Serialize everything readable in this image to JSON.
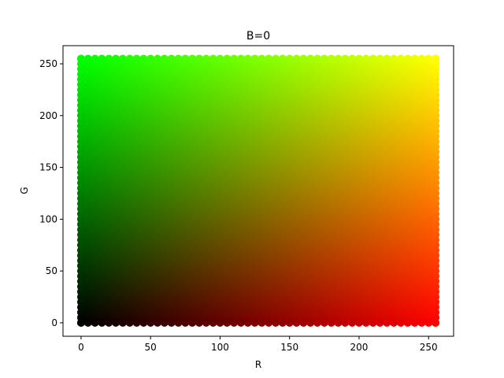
{
  "chart_data": {
    "type": "scatter",
    "title": "B=0",
    "xlabel": "R",
    "ylabel": "G",
    "xlim": [
      -13,
      268
    ],
    "ylim": [
      -13,
      267.5
    ],
    "xticks": [
      0,
      50,
      100,
      150,
      200,
      250
    ],
    "yticks": [
      0,
      50,
      100,
      150,
      200,
      250
    ],
    "x_values": {
      "start": 0,
      "stop": 255,
      "step": 5
    },
    "y_values": {
      "start": 0,
      "stop": 255,
      "step": 5
    },
    "point_color": "rgb(x, y, 0)",
    "grid": false
  }
}
